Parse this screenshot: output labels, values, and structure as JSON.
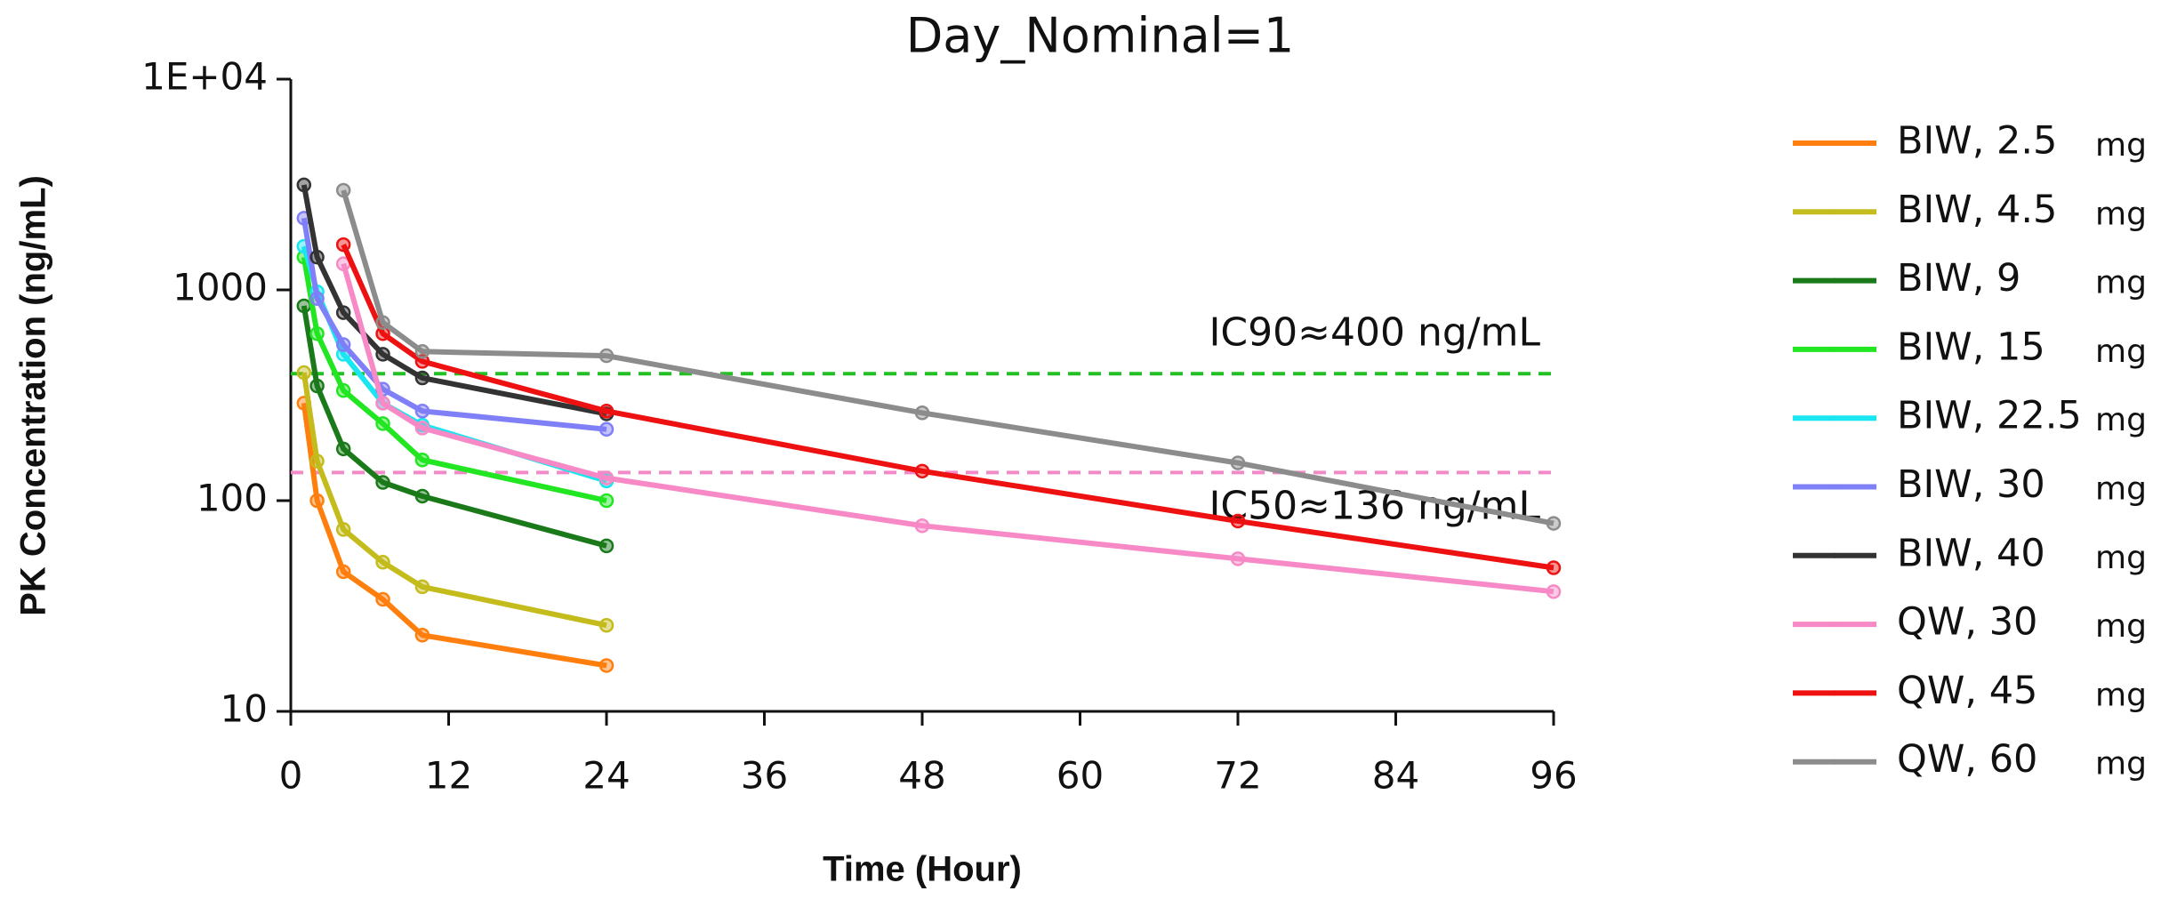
{
  "chart_data": {
    "type": "line",
    "title": "Day_Nominal=1",
    "x_label": "Time (Hour)",
    "y_label": "PK Concentration (ng/mL)",
    "xlim": [
      0,
      96
    ],
    "xticks": [
      0,
      12,
      24,
      36,
      48,
      60,
      72,
      84,
      96
    ],
    "ylim": [
      10,
      10000
    ],
    "yticks": [
      10,
      100,
      1000,
      {
        "value": 10000,
        "label": "1E+04"
      }
    ],
    "y_log": true,
    "grid": false,
    "legend_position": "right",
    "legend_unit": "mg",
    "reference_lines": [
      {
        "value": 400,
        "color": "#22c022",
        "label": "IC90≈400 ng/mL"
      },
      {
        "value": 136,
        "color": "#f28ac8",
        "label": "IC50≈136 ng/mL"
      }
    ],
    "series": [
      {
        "name": "BIW, 2.5",
        "color": "#ff7f0e",
        "x": [
          1,
          2,
          4,
          7,
          10,
          24
        ],
        "values": [
          290,
          100,
          46,
          34,
          23,
          16.5
        ]
      },
      {
        "name": "BIW, 4.5",
        "color": "#c4bb1c",
        "x": [
          1,
          2,
          4,
          7,
          10,
          24
        ],
        "values": [
          405,
          154,
          73,
          51,
          39,
          25.6
        ]
      },
      {
        "name": "BIW, 9",
        "color": "#1a7a1a",
        "x": [
          1,
          2,
          4,
          7,
          10,
          24
        ],
        "values": [
          840,
          350,
          176,
          122,
          105,
          61
        ]
      },
      {
        "name": "BIW, 15",
        "color": "#22e622",
        "x": [
          1,
          2,
          4,
          7,
          10,
          24
        ],
        "values": [
          1430,
          620,
          333,
          232,
          156,
          100
        ]
      },
      {
        "name": "BIW, 22.5",
        "color": "#19e6f0",
        "x": [
          1,
          2,
          4,
          7,
          10,
          24
        ],
        "values": [
          1610,
          980,
          495,
          290,
          228,
          124
        ]
      },
      {
        "name": "BIW, 30",
        "color": "#7f7ff7",
        "x": [
          1,
          2,
          4,
          7,
          10,
          24
        ],
        "values": [
          2190,
          910,
          550,
          338,
          266,
          218
        ]
      },
      {
        "name": "BIW, 40",
        "color": "#333333",
        "x": [
          1,
          2,
          4,
          7,
          10,
          24
        ],
        "values": [
          3150,
          1430,
          780,
          495,
          382,
          258
        ]
      },
      {
        "name": "QW, 30",
        "color": "#f78ac6",
        "x": [
          4,
          7,
          10,
          24,
          48,
          72,
          96
        ],
        "values": [
          1330,
          290,
          221,
          128,
          76,
          53,
          37
        ]
      },
      {
        "name": "QW, 45",
        "color": "#ee1111",
        "x": [
          4,
          7,
          10,
          24,
          48,
          72,
          96
        ],
        "values": [
          1640,
          620,
          458,
          266,
          138,
          80,
          48
        ]
      },
      {
        "name": "QW, 60",
        "color": "#8c8c8c",
        "x": [
          4,
          7,
          10,
          24,
          48,
          72,
          96
        ],
        "values": [
          2970,
          700,
          510,
          487,
          261,
          151,
          78
        ]
      }
    ]
  }
}
